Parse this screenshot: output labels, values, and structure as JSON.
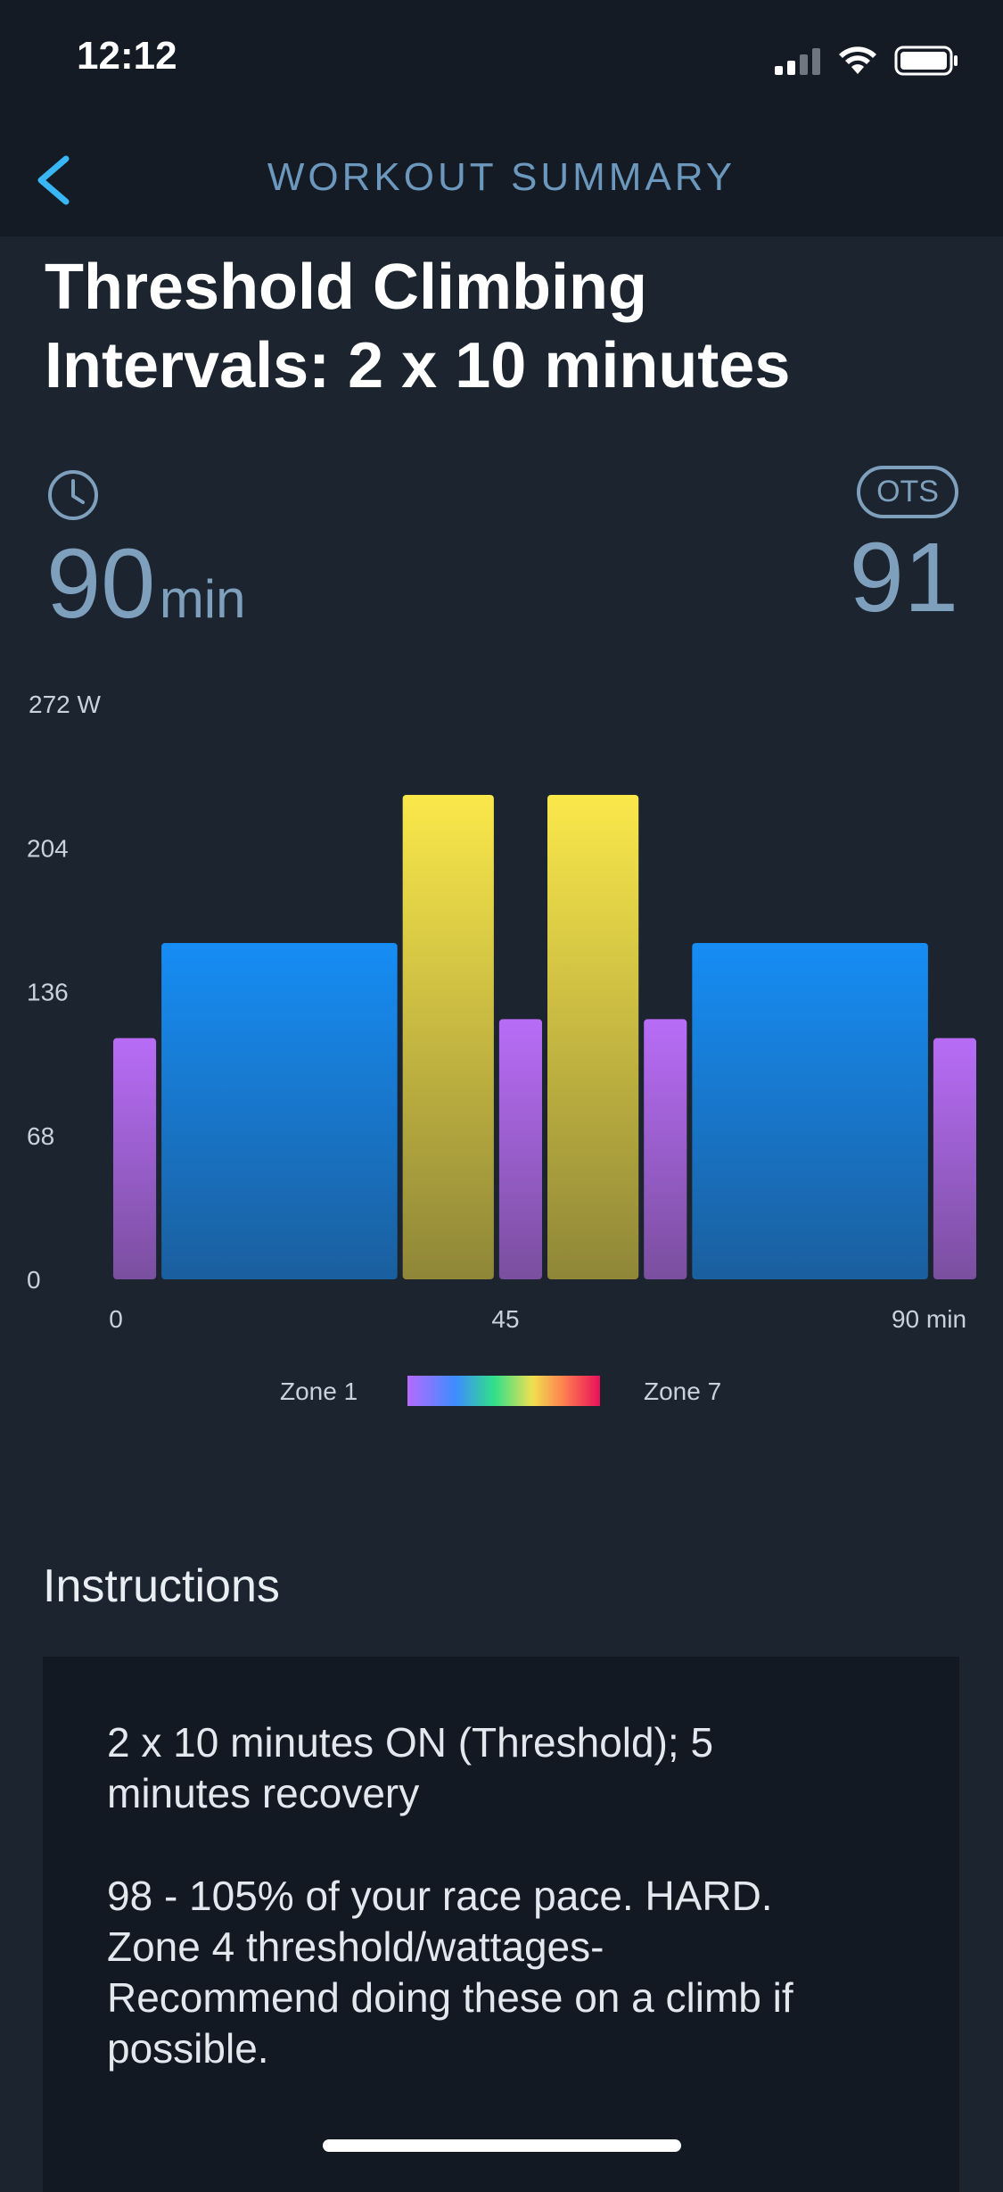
{
  "status_bar": {
    "time": "12:12"
  },
  "nav": {
    "title": "WORKOUT SUMMARY"
  },
  "workout": {
    "title_line1": "Threshold Climbing",
    "title_line2": "Intervals: 2 x 10 minutes",
    "duration_value": "90",
    "duration_unit": "min",
    "ots_label": "OTS",
    "ots_value": "91"
  },
  "chart_data": {
    "type": "bar",
    "y_unit": "W",
    "y_ticks": [
      "272 W",
      "204",
      "136",
      "68",
      "0"
    ],
    "x_ticks": [
      "0",
      "45",
      "90 min"
    ],
    "ylim": [
      0,
      272
    ],
    "xlim": [
      0,
      90
    ],
    "segments": [
      {
        "start": 0,
        "end": 5,
        "value": 114,
        "zone": "Zone 1"
      },
      {
        "start": 5,
        "end": 30,
        "value": 159,
        "zone": "Zone 2"
      },
      {
        "start": 30,
        "end": 40,
        "value": 229,
        "zone": "Zone 4"
      },
      {
        "start": 40,
        "end": 45,
        "value": 123,
        "zone": "Zone 1"
      },
      {
        "start": 45,
        "end": 55,
        "value": 229,
        "zone": "Zone 4"
      },
      {
        "start": 55,
        "end": 60,
        "value": 123,
        "zone": "Zone 1"
      },
      {
        "start": 60,
        "end": 85,
        "value": 159,
        "zone": "Zone 2"
      },
      {
        "start": 85,
        "end": 90,
        "value": 114,
        "zone": "Zone 1"
      }
    ],
    "zone_colors": {
      "Zone 1": [
        "#b86cf7",
        "#7a4f9f"
      ],
      "Zone 2": [
        "#168df5",
        "#1a5f9e"
      ],
      "Zone 4": [
        "#fae84a",
        "#8f8638"
      ]
    },
    "legend": {
      "min": "Zone 1",
      "max": "Zone 7"
    }
  },
  "instructions": {
    "heading": "Instructions",
    "para1_line1": "2 x 10 minutes ON (Threshold); 5",
    "para1_line2": "minutes recovery",
    "para2_line1": "98 - 105% of your race pace. HARD.",
    "para2_line2": "Zone 4 threshold/wattages-",
    "para2_line3": "Recommend doing these on a climb if",
    "para2_line4": "possible."
  }
}
